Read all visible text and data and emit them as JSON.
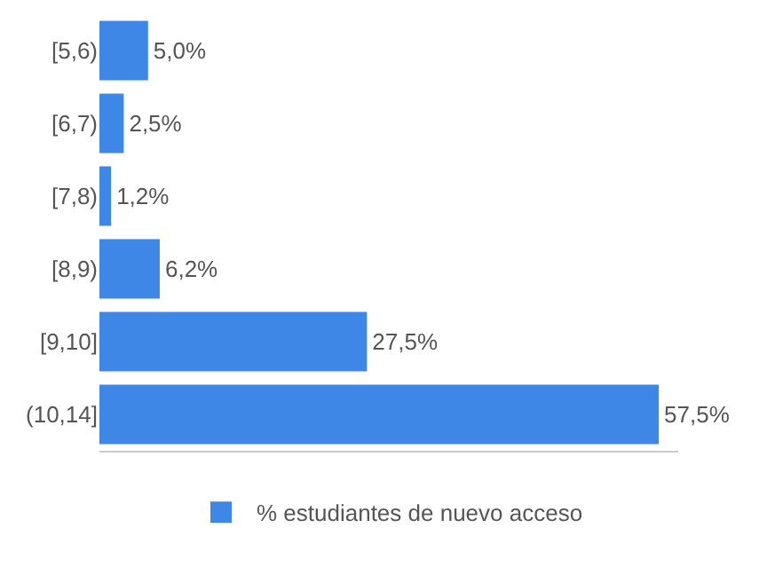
{
  "chart_data": {
    "type": "bar",
    "orientation": "horizontal",
    "categories": [
      "[5,6)",
      "[6,7)",
      "[7,8)",
      "[8,9)",
      "[9,10]",
      "(10,14]"
    ],
    "series": [
      {
        "name": "% estudiantes de nuevo acceso",
        "color": "#3f87e6",
        "values": [
          5.0,
          2.5,
          1.2,
          6.2,
          27.5,
          57.5
        ],
        "value_labels": [
          "5,0%",
          "2,5%",
          "1,2%",
          "6,2%",
          "27,5%",
          "57,5%"
        ]
      }
    ],
    "xlim": [
      0,
      59.5
    ],
    "legend": "bottom"
  }
}
